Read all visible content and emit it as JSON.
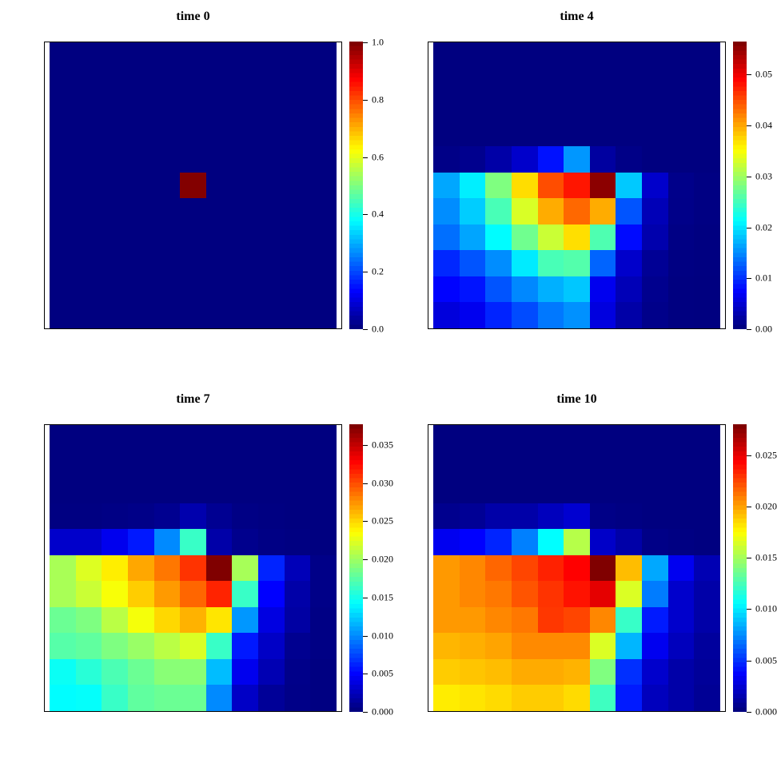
{
  "figure": {
    "background_color": "#ffffff",
    "layout": "2x2 grid of heatmap panels with individual colorbars"
  },
  "colormap": {
    "name": "jet",
    "stops": [
      "#000080",
      "#0000FF",
      "#00FFFF",
      "#80FF80",
      "#FFFF00",
      "#FF0000",
      "#800000"
    ]
  },
  "chart_data": [
    {
      "type": "heatmap",
      "title": "time 0",
      "grid_rows": 11,
      "grid_cols": 11,
      "scale_max": 1.003,
      "colorbar_ticks": [
        {
          "value": 0.0,
          "label": "0.0"
        },
        {
          "value": 0.2,
          "label": "0.2"
        },
        {
          "value": 0.4,
          "label": "0.4"
        },
        {
          "value": 0.6,
          "label": "0.6"
        },
        {
          "value": 0.8,
          "label": "0.8"
        },
        {
          "value": 1.0,
          "label": "1.0"
        }
      ],
      "values": [
        [
          0,
          0,
          0,
          0,
          0,
          0,
          0,
          0,
          0,
          0,
          0
        ],
        [
          0,
          0,
          0,
          0,
          0,
          0,
          0,
          0,
          0,
          0,
          0
        ],
        [
          0,
          0,
          0,
          0,
          0,
          0,
          0,
          0,
          0,
          0,
          0
        ],
        [
          0,
          0,
          0,
          0,
          0,
          0,
          0,
          0,
          0,
          0,
          0
        ],
        [
          0,
          0,
          0,
          0,
          0,
          0,
          0,
          0,
          0,
          0,
          0
        ],
        [
          0,
          0,
          0,
          0,
          0,
          1.0,
          0,
          0,
          0,
          0,
          0
        ],
        [
          0,
          0,
          0,
          0,
          0,
          0,
          0,
          0,
          0,
          0,
          0
        ],
        [
          0,
          0,
          0,
          0,
          0,
          0,
          0,
          0,
          0,
          0,
          0
        ],
        [
          0,
          0,
          0,
          0,
          0,
          0,
          0,
          0,
          0,
          0,
          0
        ],
        [
          0,
          0,
          0,
          0,
          0,
          0,
          0,
          0,
          0,
          0,
          0
        ],
        [
          0,
          0,
          0,
          0,
          0,
          0,
          0,
          0,
          0,
          0,
          0
        ]
      ]
    },
    {
      "type": "heatmap",
      "title": "time 4",
      "grid_rows": 11,
      "grid_cols": 11,
      "scale_max": 0.0565,
      "colorbar_ticks": [
        {
          "value": 0.0,
          "label": "0.00"
        },
        {
          "value": 0.01,
          "label": "0.01"
        },
        {
          "value": 0.02,
          "label": "0.02"
        },
        {
          "value": 0.03,
          "label": "0.03"
        },
        {
          "value": 0.04,
          "label": "0.04"
        },
        {
          "value": 0.05,
          "label": "0.05"
        }
      ],
      "values": [
        [
          0,
          0,
          0,
          0,
          0,
          0,
          0,
          0,
          0,
          0,
          0
        ],
        [
          0,
          0,
          0,
          0,
          0,
          0,
          0,
          0,
          0,
          0,
          0
        ],
        [
          0,
          0,
          0,
          0,
          0,
          0,
          0,
          0,
          0,
          0,
          0
        ],
        [
          0,
          0,
          0,
          0,
          0,
          0,
          0,
          0,
          0,
          0,
          0
        ],
        [
          0.0004,
          0.0008,
          0.0022,
          0.0042,
          0.008,
          0.0154,
          0.0018,
          0.0004,
          0,
          0,
          0
        ],
        [
          0.0163,
          0.0203,
          0.0282,
          0.0372,
          0.0452,
          0.0483,
          0.0558,
          0.0182,
          0.0042,
          0.0006,
          0.0002
        ],
        [
          0.0149,
          0.0184,
          0.0252,
          0.0332,
          0.0399,
          0.0437,
          0.0399,
          0.0117,
          0.0031,
          0.0005,
          0.0002
        ],
        [
          0.0132,
          0.0162,
          0.0211,
          0.0274,
          0.0324,
          0.0371,
          0.0255,
          0.0076,
          0.0025,
          0.0003,
          0.0001
        ],
        [
          0.0092,
          0.0117,
          0.0149,
          0.0201,
          0.0252,
          0.0258,
          0.0126,
          0.0042,
          0.0012,
          0.0002,
          0.0001
        ],
        [
          0.0072,
          0.0081,
          0.0117,
          0.0146,
          0.0168,
          0.0181,
          0.0062,
          0.0031,
          0.0008,
          0.0001,
          0
        ],
        [
          0.0051,
          0.0062,
          0.009,
          0.0112,
          0.0137,
          0.0151,
          0.0053,
          0.0022,
          0.0006,
          0.0001,
          0
        ]
      ]
    },
    {
      "type": "heatmap",
      "title": "time 7",
      "grid_rows": 11,
      "grid_cols": 11,
      "scale_max": 0.0377,
      "colorbar_ticks": [
        {
          "value": 0.0,
          "label": "0.000"
        },
        {
          "value": 0.005,
          "label": "0.005"
        },
        {
          "value": 0.01,
          "label": "0.010"
        },
        {
          "value": 0.015,
          "label": "0.015"
        },
        {
          "value": 0.02,
          "label": "0.020"
        },
        {
          "value": 0.025,
          "label": "0.025"
        },
        {
          "value": 0.03,
          "label": "0.030"
        },
        {
          "value": 0.035,
          "label": "0.035"
        }
      ],
      "values": [
        [
          0,
          0,
          0,
          0,
          0,
          0,
          0,
          0,
          0,
          0,
          0
        ],
        [
          0,
          0,
          0,
          0,
          0,
          0,
          0,
          0,
          0,
          0,
          0
        ],
        [
          0,
          0,
          0,
          0,
          0,
          0,
          0,
          0,
          0,
          0,
          0
        ],
        [
          0.0001,
          0.0001,
          0.0002,
          0.0003,
          0.0006,
          0.0017,
          0.0007,
          0.0002,
          0.0001,
          0,
          0
        ],
        [
          0.0028,
          0.0028,
          0.0041,
          0.0056,
          0.0098,
          0.0162,
          0.0015,
          0.0005,
          0.0002,
          0.0001,
          0
        ],
        [
          0.0204,
          0.0223,
          0.0242,
          0.0268,
          0.0286,
          0.0311,
          0.0377,
          0.0203,
          0.006,
          0.0021,
          0.0003
        ],
        [
          0.0204,
          0.0216,
          0.0233,
          0.0254,
          0.0273,
          0.0292,
          0.0317,
          0.0162,
          0.0047,
          0.0015,
          0.0003
        ],
        [
          0.0181,
          0.0188,
          0.021,
          0.0232,
          0.025,
          0.0264,
          0.0245,
          0.0103,
          0.0036,
          0.0013,
          0.0002
        ],
        [
          0.0173,
          0.0177,
          0.0188,
          0.0198,
          0.021,
          0.0222,
          0.0162,
          0.0056,
          0.0026,
          0.0006,
          0.0002
        ],
        [
          0.0145,
          0.0156,
          0.0169,
          0.0181,
          0.0192,
          0.0192,
          0.0117,
          0.0041,
          0.0019,
          0.0004,
          0.0001
        ],
        [
          0.0141,
          0.0143,
          0.0162,
          0.0177,
          0.0181,
          0.0181,
          0.0098,
          0.0026,
          0.0009,
          0.0003,
          0.0001
        ]
      ]
    },
    {
      "type": "heatmap",
      "title": "time 10",
      "grid_rows": 11,
      "grid_cols": 11,
      "scale_max": 0.028,
      "colorbar_ticks": [
        {
          "value": 0.0,
          "label": "0.000"
        },
        {
          "value": 0.005,
          "label": "0.005"
        },
        {
          "value": 0.01,
          "label": "0.010"
        },
        {
          "value": 0.015,
          "label": "0.015"
        },
        {
          "value": 0.02,
          "label": "0.020"
        },
        {
          "value": 0.025,
          "label": "0.025"
        }
      ],
      "values": [
        [
          0,
          0,
          0,
          0,
          0,
          0,
          0,
          0,
          0,
          0,
          0
        ],
        [
          0,
          0,
          0,
          0,
          0,
          0,
          0,
          0,
          0,
          0,
          0
        ],
        [
          0,
          0,
          0,
          0,
          0,
          0,
          0,
          0,
          0,
          0,
          0
        ],
        [
          0.0004,
          0.0006,
          0.0011,
          0.0011,
          0.0017,
          0.0022,
          0.0002,
          0.0001,
          0,
          0,
          0
        ],
        [
          0.0031,
          0.0035,
          0.0045,
          0.007,
          0.0105,
          0.0155,
          0.002,
          0.0011,
          0.0002,
          0.0001,
          0
        ],
        [
          0.0203,
          0.0208,
          0.0217,
          0.0226,
          0.0236,
          0.0245,
          0.028,
          0.0193,
          0.0081,
          0.0031,
          0.0014
        ],
        [
          0.0203,
          0.0208,
          0.0212,
          0.0222,
          0.0231,
          0.024,
          0.0252,
          0.0165,
          0.0069,
          0.0021,
          0.0011
        ],
        [
          0.0203,
          0.0203,
          0.0208,
          0.0212,
          0.023,
          0.0226,
          0.0208,
          0.012,
          0.0042,
          0.0021,
          0.0011
        ],
        [
          0.0195,
          0.0197,
          0.02,
          0.0207,
          0.0207,
          0.0207,
          0.0165,
          0.0085,
          0.0031,
          0.0017,
          0.0008
        ],
        [
          0.0189,
          0.0191,
          0.0193,
          0.0198,
          0.0198,
          0.0196,
          0.014,
          0.0048,
          0.0021,
          0.0011,
          0.0007
        ],
        [
          0.018,
          0.0182,
          0.0185,
          0.0189,
          0.0189,
          0.0185,
          0.0122,
          0.0042,
          0.0017,
          0.0011,
          0.0006
        ]
      ]
    }
  ]
}
